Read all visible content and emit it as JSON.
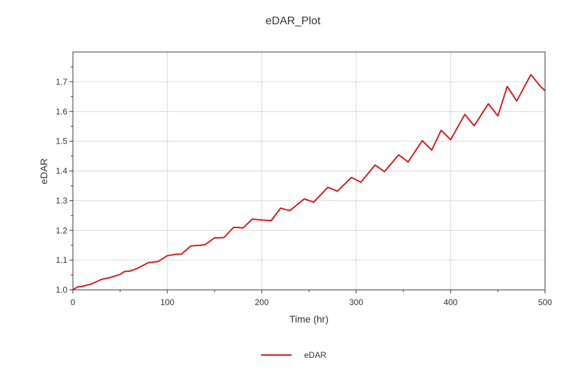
{
  "chart_data": {
    "type": "line",
    "title": "eDAR_Plot",
    "xlabel": "Time (hr)",
    "ylabel": "eDAR",
    "xlim": [
      0,
      500
    ],
    "ylim": [
      1.0,
      1.8
    ],
    "xticks": [
      "0",
      "100",
      "200",
      "300",
      "400",
      "500"
    ],
    "yticks": [
      "1.0",
      "1.1",
      "1.2",
      "1.3",
      "1.4",
      "1.5",
      "1.6",
      "1.7"
    ],
    "grid": true,
    "legend_position": "bottom-center",
    "series": [
      {
        "name": "eDAR",
        "color": "#d7191c",
        "x": [
          0,
          5,
          10,
          20,
          30,
          40,
          50,
          55,
          60,
          65,
          70,
          80,
          90,
          100,
          110,
          115,
          125,
          135,
          140,
          150,
          155,
          160,
          170,
          175,
          180,
          190,
          200,
          205,
          210,
          220,
          225,
          230,
          245,
          255,
          270,
          280,
          295,
          305,
          320,
          330,
          345,
          355,
          370,
          380,
          390,
          400,
          415,
          425,
          440,
          450,
          460,
          470,
          485,
          495,
          500
        ],
        "values": [
          1.0,
          1.01,
          1.012,
          1.02,
          1.035,
          1.042,
          1.052,
          1.062,
          1.063,
          1.068,
          1.075,
          1.092,
          1.095,
          1.115,
          1.12,
          1.12,
          1.148,
          1.15,
          1.152,
          1.175,
          1.175,
          1.176,
          1.21,
          1.21,
          1.208,
          1.238,
          1.235,
          1.234,
          1.233,
          1.275,
          1.27,
          1.267,
          1.306,
          1.295,
          1.345,
          1.332,
          1.378,
          1.362,
          1.42,
          1.398,
          1.454,
          1.43,
          1.502,
          1.47,
          1.537,
          1.505,
          1.59,
          1.552,
          1.626,
          1.585,
          1.684,
          1.635,
          1.724,
          1.685,
          1.67
        ]
      }
    ]
  }
}
